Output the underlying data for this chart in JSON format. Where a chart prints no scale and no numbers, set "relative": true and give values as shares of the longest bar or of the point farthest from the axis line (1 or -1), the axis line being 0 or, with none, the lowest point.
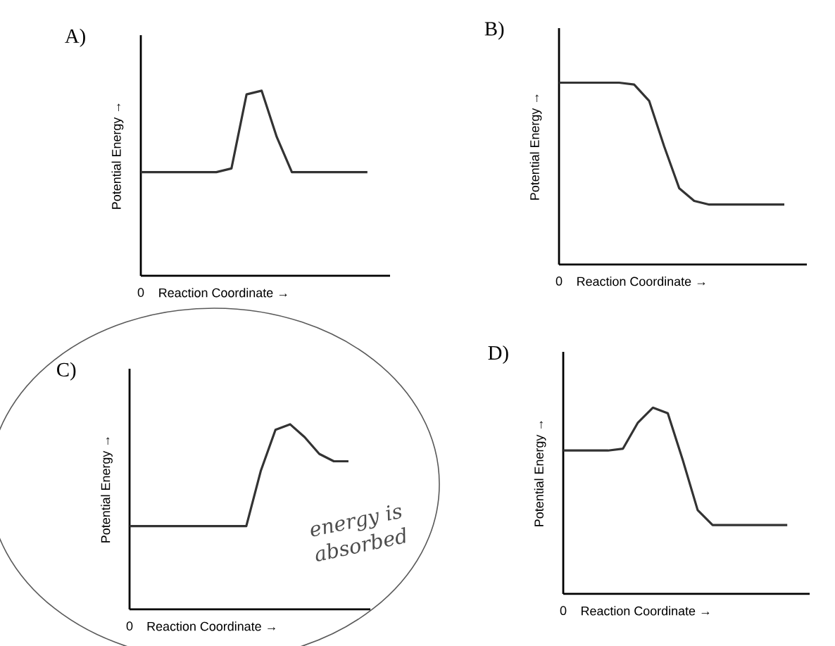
{
  "chart_data": [
    {
      "type": "line",
      "title": "A)",
      "xlabel": "Reaction Coordinate →",
      "ylabel": "Potential Energy →",
      "relative": true,
      "color": "#333333",
      "categories": [
        null,
        null,
        null,
        null,
        null,
        null,
        null,
        null,
        null,
        null,
        null,
        null,
        null,
        null,
        null,
        null
      ],
      "values": [
        0.56,
        0.56,
        0.56,
        0.56,
        0.56,
        0.56,
        0.58,
        0.98,
        1,
        0.75,
        0.56,
        0.56,
        0.56,
        0.56,
        0.56,
        0.56
      ],
      "annotations": [
        "0"
      ]
    },
    {
      "type": "line",
      "title": "B)",
      "xlabel": "Reaction Coordinate →",
      "ylabel": "Potential Energy →",
      "relative": true,
      "color": "#333333",
      "categories": [
        null,
        null,
        null,
        null,
        null,
        null,
        null,
        null,
        null,
        null,
        null,
        null,
        null,
        null,
        null,
        null
      ],
      "values": [
        1,
        1,
        1,
        1,
        1,
        0.99,
        0.9,
        0.65,
        0.42,
        0.35,
        0.33,
        0.33,
        0.33,
        0.33,
        0.33,
        0.33
      ],
      "annotations": [
        "0"
      ]
    },
    {
      "type": "line",
      "title": "C)",
      "xlabel": "Reaction Coordinate →",
      "ylabel": "Potential Energy →",
      "relative": true,
      "color": "#333333",
      "categories": [
        null,
        null,
        null,
        null,
        null,
        null,
        null,
        null,
        null,
        null,
        null,
        null,
        null,
        null,
        null,
        null
      ],
      "values": [
        0.45,
        0.45,
        0.45,
        0.45,
        0.45,
        0.45,
        0.45,
        0.45,
        0.45,
        0.75,
        0.97,
        1,
        0.93,
        0.84,
        0.8,
        0.8
      ],
      "annotations": [
        "0",
        "energy is absorbed"
      ]
    },
    {
      "type": "line",
      "title": "D)",
      "xlabel": "Reaction Coordinate →",
      "ylabel": "Potential Energy →",
      "relative": true,
      "color": "#333333",
      "categories": [
        null,
        null,
        null,
        null,
        null,
        null,
        null,
        null,
        null,
        null,
        null,
        null,
        null,
        null,
        null,
        null
      ],
      "values": [
        0.77,
        0.77,
        0.77,
        0.77,
        0.78,
        0.92,
        1,
        0.97,
        0.72,
        0.45,
        0.37,
        0.37,
        0.37,
        0.37,
        0.37,
        0.37
      ],
      "annotations": [
        "0"
      ]
    }
  ]
}
